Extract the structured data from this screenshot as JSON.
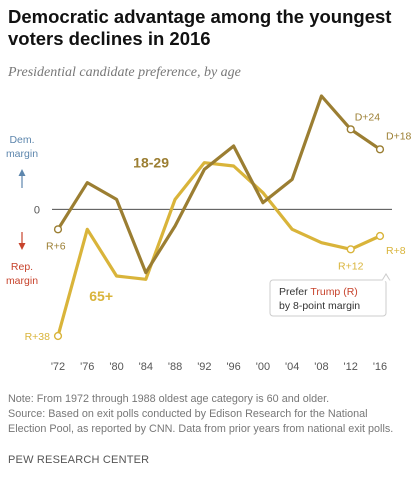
{
  "page": {
    "title": "Democratic advantage among the youngest voters declines in 2016",
    "subtitle": "Presidential candidate preference, by age",
    "note": "Note: From 1972 through 1988 oldest age category is 60 and older.",
    "source_line1": "Source: Based on exit polls conducted by Edison Research for the National",
    "source_line2": "Election Pool, as reported by CNN. Data from prior years from national exit polls.",
    "org": "PEW RESEARCH CENTER"
  },
  "colors": {
    "series_18_29": "#9b7e32",
    "series_65_plus": "#d9b43a",
    "dem_arrow": "#5d86ad",
    "rep_arrow": "#c7432c",
    "trump_text": "#c7432c",
    "zero_line": "#333333",
    "tick_text": "#555555"
  },
  "chart_data": {
    "type": "line",
    "x_ticks": [
      "'72",
      "'76",
      "'80",
      "'84",
      "'88",
      "'92",
      "'96",
      "'00",
      "'04",
      "'08",
      "'12",
      "'16"
    ],
    "x": [
      1972,
      1976,
      1980,
      1984,
      1988,
      1992,
      1996,
      2000,
      2004,
      2008,
      2012,
      2016
    ],
    "xlim": [
      1972,
      2016
    ],
    "ylim": [
      -38,
      34
    ],
    "zero_label": "0",
    "series": [
      {
        "name": "18-29",
        "values": [
          -6,
          8,
          3,
          -19,
          -5,
          12,
          19,
          2,
          9,
          34,
          24,
          18
        ],
        "endpoint_labels": [
          {
            "index": 0,
            "text": "R+6",
            "anchor": "below-left"
          },
          {
            "index": 10,
            "text": "D+24",
            "anchor": "right"
          },
          {
            "index": 11,
            "text": "D+18",
            "anchor": "right"
          }
        ]
      },
      {
        "name": "65+",
        "values": [
          -38,
          -6,
          -20,
          -21,
          3,
          14,
          13,
          5,
          -6,
          -10,
          -12,
          -8
        ],
        "endpoint_labels": [
          {
            "index": 0,
            "text": "R+38",
            "anchor": "left"
          },
          {
            "index": 10,
            "text": "R+12",
            "anchor": "below"
          },
          {
            "index": 11,
            "text": "R+8",
            "anchor": "below-right"
          }
        ]
      }
    ],
    "y_side_labels": {
      "dem": [
        "Dem.",
        "margin"
      ],
      "rep": [
        "Rep.",
        "margin"
      ]
    },
    "callout": {
      "line1_prefix": "Prefer ",
      "line1_highlight": "Trump (R)",
      "line2": "by 8-point margin"
    }
  }
}
